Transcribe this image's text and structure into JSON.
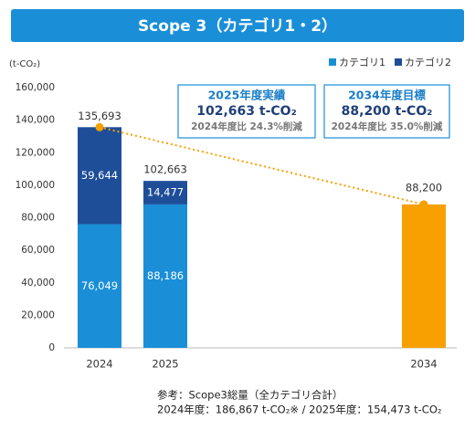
{
  "chart_data": {
    "type": "stacked_bar",
    "title": "Scope 3（カテゴリ1・2）",
    "y_unit": "(t-CO₂)",
    "categories": [
      "2024",
      "2025",
      "2034"
    ],
    "series": [
      {
        "name": "カテゴリ1",
        "color": "#1a8fd8",
        "values": [
          76049,
          88186,
          null
        ],
        "value_labels": [
          "76,049",
          "88,186",
          null
        ]
      },
      {
        "name": "カテゴリ2",
        "color": "#1f4e99",
        "values": [
          59644,
          14477,
          null
        ],
        "value_labels": [
          "59,644",
          "14,477",
          null
        ]
      }
    ],
    "totals": [
      135693,
      102663
    ],
    "total_labels": [
      "135,693",
      "102,663"
    ],
    "target": {
      "value": 88200,
      "label": "88,200",
      "color": "#f7a000"
    },
    "ylim": [
      0,
      160000
    ],
    "yticks": [
      0,
      {
        "value": 20000,
        "label": "20,000"
      },
      {
        "value": 40000,
        "label": "40,000"
      },
      {
        "value": 60000,
        "label": "60,000"
      },
      {
        "value": 80000,
        "label": "80,000"
      },
      {
        "value": 100000,
        "label": "100,000"
      },
      {
        "value": 120000,
        "label": "120,000"
      },
      {
        "value": 140000,
        "label": "140,000"
      },
      {
        "value": 160000,
        "label": "160,000"
      }
    ],
    "legend": "top-right",
    "annotations": [
      {
        "lines": [
          "2025年度実績",
          "102,663 t-CO₂",
          "2024年度比 24.3%削減"
        ]
      },
      {
        "lines": [
          "2034年度目標",
          "88,200 t-CO₂",
          "2024年度比 35.0%削減"
        ]
      }
    ],
    "footnote": [
      "参考：Scope3総量（全カテゴリ合計）",
      "2024年度：186,867 t-CO₂※ / 2025年度：154,473 t-CO₂"
    ]
  }
}
